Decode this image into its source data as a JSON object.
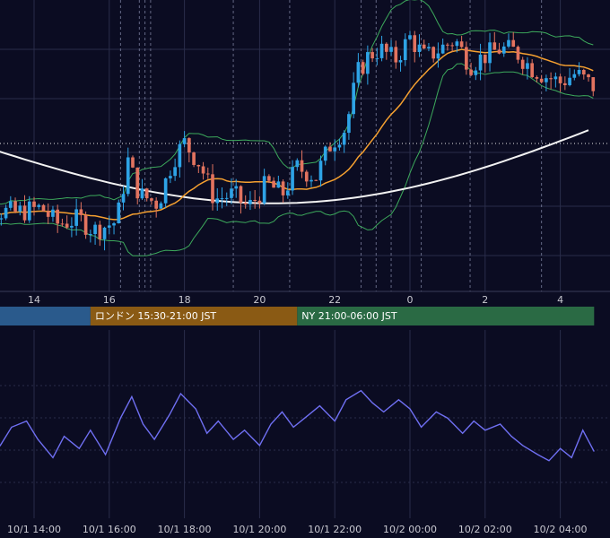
{
  "colors": {
    "background": "#0b0c22",
    "grid": "#2a2d4a",
    "candle_up": "#2ea3e6",
    "candle_down": "#e2735f",
    "ma_short": "#f5a030",
    "ma_long": "#f2f2f2",
    "bollinger": "#3daa5c",
    "oscillator": "#6f6ff2",
    "session_tokyo": "#2a5a8c",
    "session_london": "#8a5a14",
    "session_ny": "#2a6a44"
  },
  "chart_data": [
    {
      "type": "candlestick",
      "x_ticks": [
        "14",
        "16",
        "18",
        "20",
        "22",
        "0",
        "2",
        "4"
      ],
      "x_range_hours": [
        12.0,
        28.9
      ],
      "y_range": [
        0,
        100
      ],
      "overlays": [
        "moving-average-short",
        "moving-average-long",
        "bollinger-bands"
      ],
      "sessions": [
        {
          "label": "",
          "start_hour": 12.0,
          "end_hour": 15.5,
          "color": "#2a5a8c"
        },
        {
          "label": "ロンドン 15:30-21:00 JST",
          "start_hour": 15.5,
          "end_hour": 21.0,
          "color": "#8a5a14"
        },
        {
          "label": "NY 21:00-06:00 JST",
          "start_hour": 21.0,
          "end_hour": 28.9,
          "color": "#2a6a44"
        }
      ],
      "closes_anchor": [
        [
          12.0,
          24
        ],
        [
          12.8,
          23
        ],
        [
          13.5,
          22
        ],
        [
          14.2,
          24
        ],
        [
          14.6,
          17
        ],
        [
          15.2,
          19
        ],
        [
          15.6,
          14
        ],
        [
          16.2,
          18
        ],
        [
          16.5,
          45
        ],
        [
          16.8,
          30
        ],
        [
          17.3,
          26
        ],
        [
          17.7,
          46
        ],
        [
          18.0,
          53
        ],
        [
          18.4,
          44
        ],
        [
          18.8,
          28
        ],
        [
          19.3,
          30
        ],
        [
          19.7,
          24
        ],
        [
          20.2,
          35
        ],
        [
          20.6,
          30
        ],
        [
          21.0,
          42
        ],
        [
          21.5,
          38
        ],
        [
          21.9,
          53
        ],
        [
          22.3,
          60
        ],
        [
          22.6,
          84
        ],
        [
          22.9,
          92
        ],
        [
          23.2,
          95
        ],
        [
          23.6,
          90
        ],
        [
          24.0,
          100
        ],
        [
          24.4,
          91
        ],
        [
          24.8,
          95
        ],
        [
          25.2,
          99
        ],
        [
          25.6,
          88
        ],
        [
          26.0,
          92
        ],
        [
          26.4,
          95
        ],
        [
          26.8,
          94
        ],
        [
          27.2,
          87
        ],
        [
          27.6,
          83
        ],
        [
          28.0,
          80
        ],
        [
          28.4,
          84
        ],
        [
          28.9,
          78
        ]
      ]
    },
    {
      "type": "line",
      "x_ticks": [
        "10/1 14:00",
        "10/1 16:00",
        "10/1 18:00",
        "10/1 20:00",
        "10/1 22:00",
        "10/2 00:00",
        "10/2 02:00",
        "10/2 04:00"
      ],
      "x_range_hours": [
        12.0,
        28.9
      ],
      "y_range": [
        0,
        100
      ],
      "series": [
        {
          "points": [
            [
              12.0,
              30
            ],
            [
              12.4,
              34
            ],
            [
              12.8,
              44
            ],
            [
              13.1,
              36
            ],
            [
              13.4,
              48
            ],
            [
              13.8,
              52
            ],
            [
              14.1,
              40
            ],
            [
              14.5,
              28
            ],
            [
              14.8,
              42
            ],
            [
              15.2,
              34
            ],
            [
              15.5,
              46
            ],
            [
              15.9,
              30
            ],
            [
              16.3,
              54
            ],
            [
              16.6,
              68
            ],
            [
              16.9,
              50
            ],
            [
              17.2,
              40
            ],
            [
              17.6,
              56
            ],
            [
              17.9,
              70
            ],
            [
              18.3,
              60
            ],
            [
              18.6,
              44
            ],
            [
              18.9,
              52
            ],
            [
              19.3,
              40
            ],
            [
              19.6,
              46
            ],
            [
              20.0,
              36
            ],
            [
              20.3,
              50
            ],
            [
              20.6,
              58
            ],
            [
              20.9,
              48
            ],
            [
              21.3,
              56
            ],
            [
              21.6,
              62
            ],
            [
              22.0,
              52
            ],
            [
              22.3,
              66
            ],
            [
              22.7,
              72
            ],
            [
              23.0,
              64
            ],
            [
              23.3,
              58
            ],
            [
              23.7,
              66
            ],
            [
              24.0,
              60
            ],
            [
              24.3,
              48
            ],
            [
              24.7,
              58
            ],
            [
              25.0,
              54
            ],
            [
              25.4,
              44
            ],
            [
              25.7,
              52
            ],
            [
              26.0,
              46
            ],
            [
              26.4,
              50
            ],
            [
              26.7,
              42
            ],
            [
              27.0,
              36
            ],
            [
              27.4,
              30
            ],
            [
              27.7,
              26
            ],
            [
              28.0,
              34
            ],
            [
              28.3,
              28
            ],
            [
              28.6,
              46
            ],
            [
              28.9,
              32
            ]
          ]
        }
      ]
    }
  ]
}
